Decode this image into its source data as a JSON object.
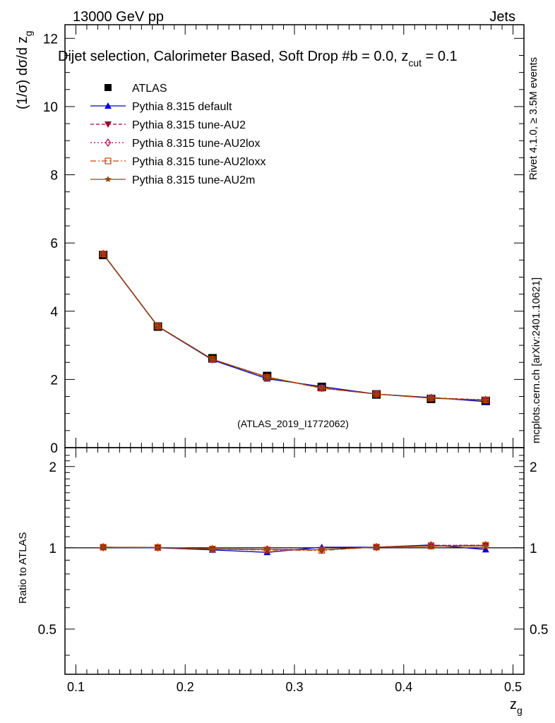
{
  "header": {
    "energy": "13000 GeV pp",
    "process": "Jets",
    "title_main": "Dijet selection, Calorimeter Based, Soft Drop #b = 0.0, z",
    "title_sub": "cut",
    "title_tail": " = 0.1",
    "rivet_label": "Rivet 4.1.0, ≥ 3.5M events",
    "mcplots_label": "mcplots.cern.ch [arXiv:2401.10621]",
    "analysis_id": "(ATLAS_2019_I1772062)"
  },
  "colors": {
    "atlas": "#000000",
    "default": "#0000cc",
    "au2": "#990033",
    "au2lox": "#aa0044",
    "au2loxx": "#cc4400",
    "au2m": "#994400",
    "label_gray": "#888888"
  },
  "chart_data": [
    {
      "type": "line",
      "panel": "main",
      "ylabel_main": "(1/σ) dσ/d z",
      "ylabel_sub": "g",
      "xlim": [
        0.09,
        0.51
      ],
      "ylim": [
        0,
        12.4
      ],
      "yticks": [
        0,
        2,
        4,
        6,
        8,
        10,
        12
      ],
      "legend_position": "top-left",
      "x": [
        0.125,
        0.175,
        0.225,
        0.275,
        0.325,
        0.375,
        0.425,
        0.475
      ],
      "series": [
        {
          "name": "ATLAS",
          "marker": "square",
          "color_key": "atlas",
          "values": [
            5.65,
            3.55,
            2.62,
            2.1,
            1.78,
            1.56,
            1.43,
            1.37
          ]
        },
        {
          "name": "Pythia 8.315 default",
          "marker": "triangle-up",
          "color_key": "default",
          "dash": "",
          "values": [
            5.67,
            3.55,
            2.57,
            2.02,
            1.79,
            1.57,
            1.47,
            1.35
          ]
        },
        {
          "name": "Pythia 8.315 tune-AU2",
          "marker": "triangle-down",
          "color_key": "au2",
          "dash": "5,3",
          "values": [
            5.68,
            3.56,
            2.59,
            2.07,
            1.75,
            1.57,
            1.46,
            1.4
          ]
        },
        {
          "name": "Pythia 8.315 tune-AU2lox",
          "marker": "diamond-open",
          "color_key": "au2lox",
          "dash": "2,3",
          "values": [
            5.68,
            3.56,
            2.59,
            2.07,
            1.75,
            1.57,
            1.46,
            1.4
          ]
        },
        {
          "name": "Pythia 8.315 tune-AU2loxx",
          "marker": "square-open",
          "color_key": "au2loxx",
          "dash": "8,3,2,3",
          "values": [
            5.68,
            3.56,
            2.59,
            2.06,
            1.74,
            1.57,
            1.45,
            1.4
          ]
        },
        {
          "name": "Pythia 8.315 tune-AU2m",
          "marker": "star",
          "color_key": "au2m",
          "dash": "",
          "values": [
            5.68,
            3.56,
            2.59,
            2.07,
            1.75,
            1.57,
            1.45,
            1.39
          ]
        }
      ]
    },
    {
      "type": "line",
      "panel": "ratio",
      "ylabel": "Ratio to ATLAS",
      "xlabel_main": "z",
      "xlabel_sub": "g",
      "xlim": [
        0.09,
        0.51
      ],
      "ylim": [
        0.34,
        2.35
      ],
      "yscale": "log",
      "yticks": [
        0.5,
        1,
        2
      ],
      "ytick_labels": [
        "0.5",
        "1",
        "2"
      ],
      "xticks": [
        0.1,
        0.2,
        0.3,
        0.4,
        0.5
      ],
      "xtick_labels": [
        "0.1",
        "0.2",
        "0.3",
        "0.4",
        "0.5"
      ],
      "x": [
        0.125,
        0.175,
        0.225,
        0.275,
        0.325,
        0.375,
        0.425,
        0.475
      ],
      "series": [
        {
          "name": "Pythia 8.315 default",
          "color_key": "default",
          "values": [
            1.003,
            1.0,
            0.982,
            0.962,
            1.005,
            1.005,
            1.025,
            0.985
          ]
        },
        {
          "name": "Pythia 8.315 tune-AU2",
          "color_key": "au2",
          "values": [
            1.005,
            1.003,
            0.989,
            0.986,
            0.983,
            1.006,
            1.021,
            1.022
          ]
        },
        {
          "name": "Pythia 8.315 tune-AU2lox",
          "color_key": "au2lox",
          "values": [
            1.005,
            1.003,
            0.989,
            0.986,
            0.983,
            1.006,
            1.021,
            1.022
          ]
        },
        {
          "name": "Pythia 8.315 tune-AU2loxx",
          "color_key": "au2loxx",
          "values": [
            1.005,
            1.003,
            0.989,
            0.981,
            0.978,
            1.006,
            1.014,
            1.022
          ]
        },
        {
          "name": "Pythia 8.315 tune-AU2m",
          "color_key": "au2m",
          "values": [
            1.005,
            1.003,
            0.989,
            0.986,
            0.983,
            1.006,
            1.014,
            1.015
          ]
        }
      ]
    }
  ]
}
